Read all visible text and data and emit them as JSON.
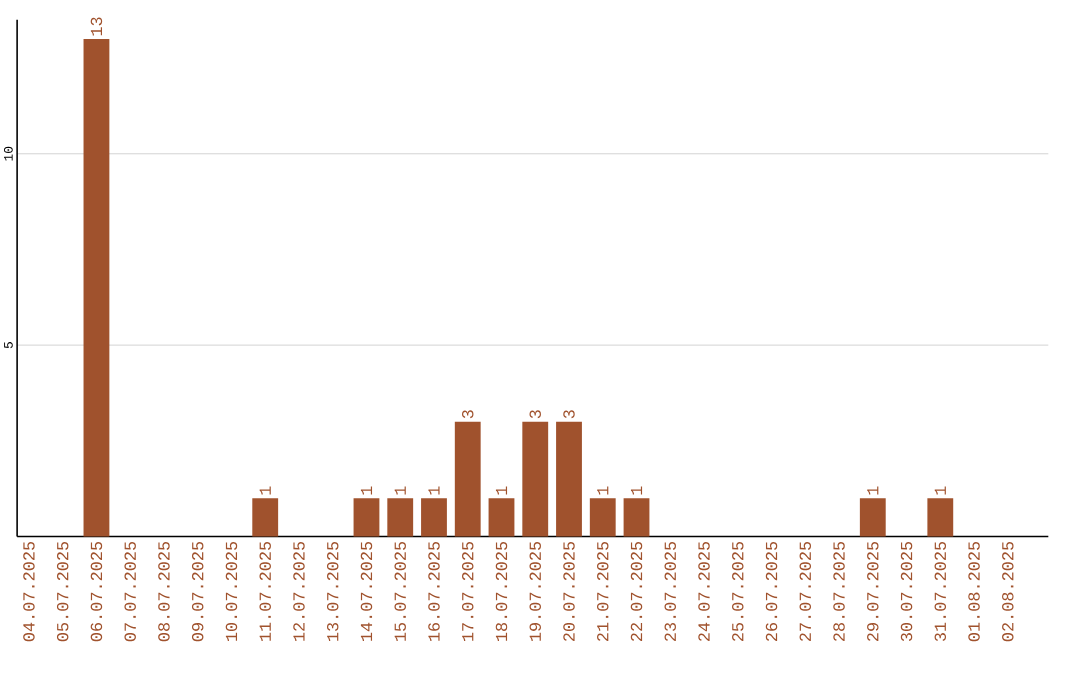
{
  "chart_data": {
    "type": "bar",
    "categories": [
      "04.07.2025",
      "05.07.2025",
      "06.07.2025",
      "07.07.2025",
      "08.07.2025",
      "09.07.2025",
      "10.07.2025",
      "11.07.2025",
      "12.07.2025",
      "13.07.2025",
      "14.07.2025",
      "15.07.2025",
      "16.07.2025",
      "17.07.2025",
      "18.07.2025",
      "19.07.2025",
      "20.07.2025",
      "21.07.2025",
      "22.07.2025",
      "23.07.2025",
      "24.07.2025",
      "25.07.2025",
      "26.07.2025",
      "27.07.2025",
      "28.07.2025",
      "29.07.2025",
      "30.07.2025",
      "31.07.2025",
      "01.08.2025",
      "02.08.2025"
    ],
    "values": [
      0,
      0,
      13,
      0,
      0,
      0,
      0,
      1,
      0,
      0,
      1,
      1,
      1,
      3,
      1,
      3,
      3,
      1,
      1,
      0,
      0,
      0,
      0,
      0,
      0,
      1,
      0,
      1,
      0,
      0
    ],
    "value_labels": [
      null,
      null,
      "13",
      null,
      null,
      null,
      null,
      "1",
      null,
      null,
      "1",
      "1",
      "1",
      "3",
      "1",
      "3",
      "3",
      "1",
      "1",
      null,
      null,
      null,
      null,
      null,
      null,
      "1",
      null,
      "1",
      null,
      null
    ],
    "color": "#a0522d",
    "ylim": [
      0,
      13.5
    ],
    "yticks": [
      5,
      10
    ],
    "grid": "y"
  }
}
